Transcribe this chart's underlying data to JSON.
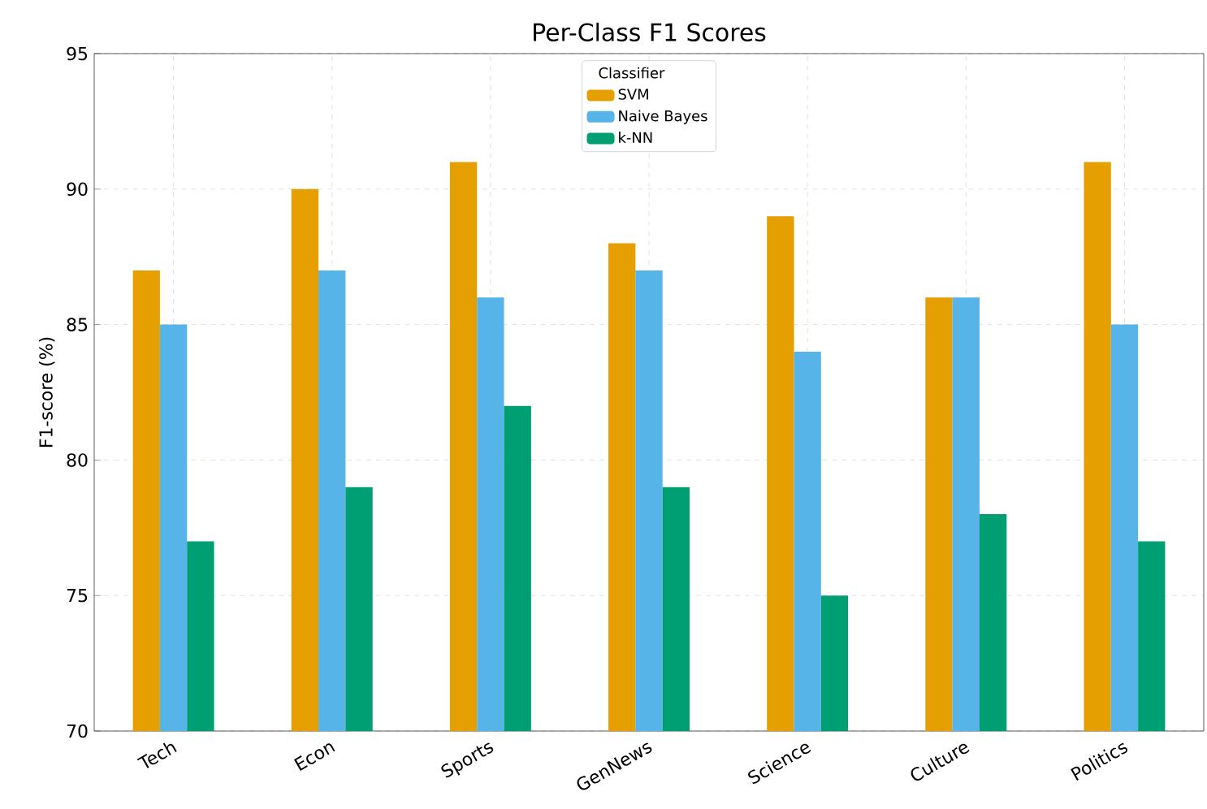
{
  "chart_data": {
    "type": "bar",
    "title": "Per-Class F1 Scores",
    "ylabel": "F1-score (%)",
    "legend_title": "Classifier",
    "categories": [
      "Tech",
      "Econ",
      "Sports",
      "GenNews",
      "Science",
      "Culture",
      "Politics"
    ],
    "series": [
      {
        "name": "SVM",
        "color": "#e69f00",
        "values": [
          87,
          90,
          91,
          88,
          89,
          86,
          91
        ]
      },
      {
        "name": "Naive Bayes",
        "color": "#56b4e9",
        "values": [
          85,
          87,
          86,
          87,
          84,
          86,
          85
        ]
      },
      {
        "name": "k-NN",
        "color": "#009e73",
        "values": [
          77,
          79,
          82,
          79,
          75,
          78,
          77
        ]
      }
    ],
    "ylim": [
      70,
      95
    ],
    "yticks": [
      70,
      75,
      80,
      85,
      90,
      95
    ],
    "grid": true,
    "legend": "top"
  }
}
